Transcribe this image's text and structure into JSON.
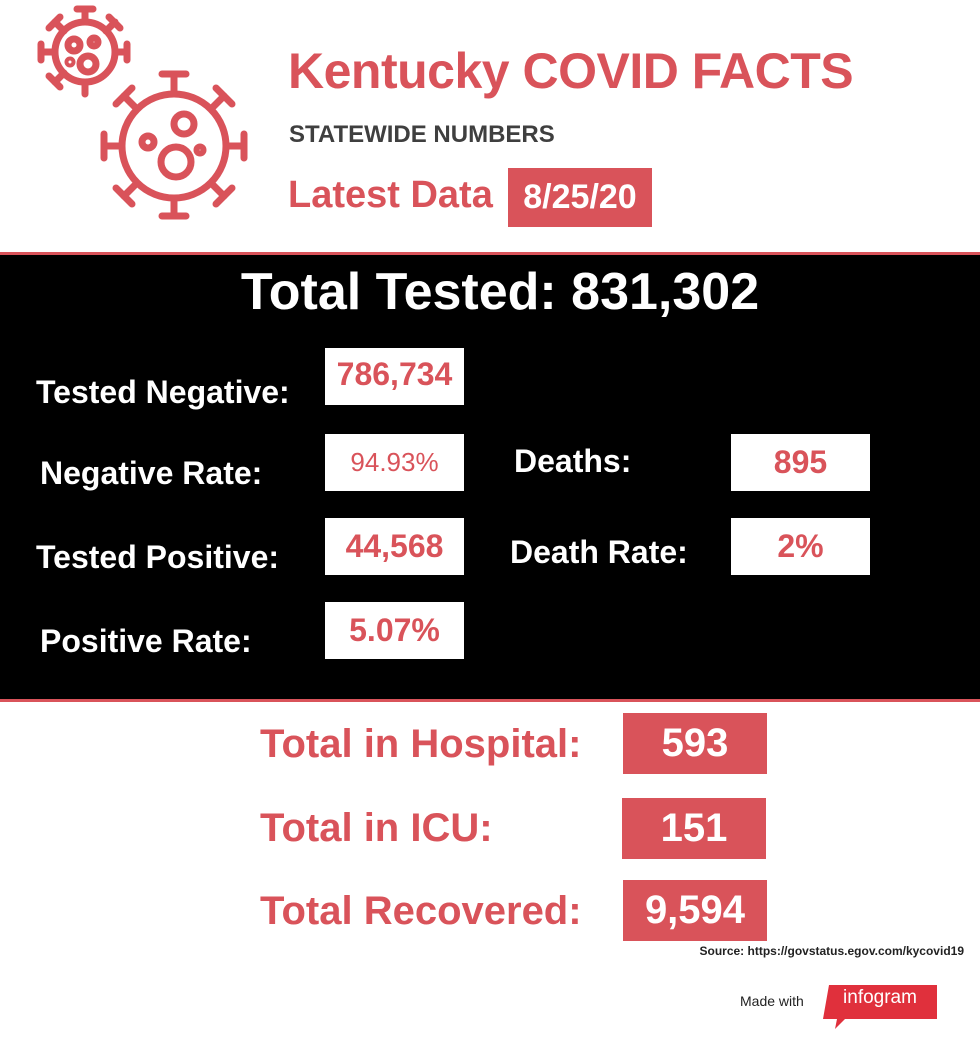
{
  "header": {
    "title": "Kentucky COVID FACTS",
    "subtitle": "STATEWIDE NUMBERS",
    "latest_label": "Latest Data",
    "latest_date": "8/25/20",
    "icon": "virus-icon"
  },
  "tests": {
    "total_tested": "Total Tested: 831,302",
    "tested_negative_label": "Tested Negative:",
    "tested_negative_value": "786,734",
    "negative_rate_label": "Negative Rate:",
    "negative_rate_value": "94.93%",
    "tested_positive_label": "Tested Positive:",
    "tested_positive_value": "44,568",
    "positive_rate_label": "Positive Rate:",
    "positive_rate_value": "5.07%",
    "deaths_label": "Deaths:",
    "deaths_value": "895",
    "death_rate_label": "Death Rate:",
    "death_rate_value": "2%"
  },
  "hospital": {
    "total_hospital_label": "Total in Hospital:",
    "total_hospital_value": "593",
    "total_icu_label": "Total in ICU:",
    "total_icu_value": "151",
    "total_recovered_label": "Total Recovered:",
    "total_recovered_value": "9,594"
  },
  "footer": {
    "source": "Source: https://govstatus.egov.com/kycovid19",
    "made_with": "Made with",
    "brand": "infogram"
  },
  "colors": {
    "accent": "#d9535a",
    "panel": "#000000",
    "text_dark": "#3f3f3f"
  }
}
